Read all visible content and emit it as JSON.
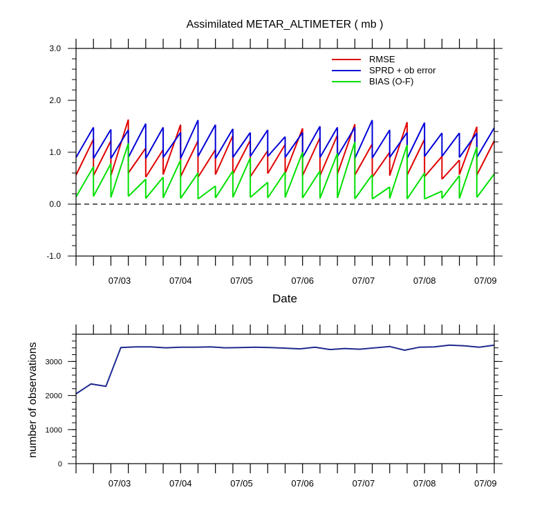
{
  "chart_data": [
    {
      "type": "line",
      "title": "Assimilated METAR_ALTIMETER ( mb )",
      "xlabel": "Date",
      "ylabel": "",
      "ylim": [
        -1.0,
        3.0
      ],
      "y_ticks": [
        "3.0",
        "2.0",
        "1.0",
        "0.0",
        "-1.0"
      ],
      "x_tick_labels": [
        "07/03",
        "07/04",
        "07/05",
        "07/06",
        "07/07",
        "07/08",
        "07/09"
      ],
      "legend_position": "top-right",
      "zero_line": "dashed",
      "colors": {
        "RMSE": "#e00000",
        "SPRD + ob error": "#0000d8",
        "BIAS (O-F)": "#00e000"
      },
      "cycles": [
        {
          "rmse": [
            0.56,
            1.25
          ],
          "sprd": [
            0.9,
            1.48
          ],
          "bias": [
            0.14,
            0.72
          ]
        },
        {
          "rmse": [
            0.55,
            1.22
          ],
          "sprd": [
            0.88,
            1.44
          ],
          "bias": [
            0.15,
            0.78
          ]
        },
        {
          "rmse": [
            0.55,
            1.63
          ],
          "sprd": [
            0.88,
            1.43
          ],
          "bias": [
            0.13,
            1.17
          ]
        },
        {
          "rmse": [
            0.6,
            1.08
          ],
          "sprd": [
            0.9,
            1.55
          ],
          "bias": [
            0.15,
            0.48
          ]
        },
        {
          "rmse": [
            0.52,
            1.05
          ],
          "sprd": [
            0.88,
            1.48
          ],
          "bias": [
            0.11,
            0.52
          ]
        },
        {
          "rmse": [
            0.57,
            1.53
          ],
          "sprd": [
            0.9,
            1.38
          ],
          "bias": [
            0.12,
            0.85
          ]
        },
        {
          "rmse": [
            0.53,
            1.22
          ],
          "sprd": [
            0.88,
            1.62
          ],
          "bias": [
            0.11,
            0.6
          ]
        },
        {
          "rmse": [
            0.52,
            1.05
          ],
          "sprd": [
            0.92,
            1.53
          ],
          "bias": [
            0.1,
            0.35
          ]
        },
        {
          "rmse": [
            0.57,
            1.32
          ],
          "sprd": [
            0.88,
            1.45
          ],
          "bias": [
            0.12,
            0.64
          ]
        },
        {
          "rmse": [
            0.58,
            1.23
          ],
          "sprd": [
            0.9,
            1.38
          ],
          "bias": [
            0.13,
            0.89
          ]
        },
        {
          "rmse": [
            0.53,
            1.03
          ],
          "sprd": [
            0.92,
            1.43
          ],
          "bias": [
            0.13,
            0.42
          ]
        },
        {
          "rmse": [
            0.59,
            1.15
          ],
          "sprd": [
            0.92,
            1.3
          ],
          "bias": [
            0.12,
            0.62
          ]
        },
        {
          "rmse": [
            0.59,
            1.46
          ],
          "sprd": [
            0.9,
            1.38
          ],
          "bias": [
            0.13,
            1.0
          ]
        },
        {
          "rmse": [
            0.55,
            1.28
          ],
          "sprd": [
            0.9,
            1.5
          ],
          "bias": [
            0.12,
            0.64
          ]
        },
        {
          "rmse": [
            0.55,
            1.33
          ],
          "sprd": [
            0.9,
            1.48
          ],
          "bias": [
            0.11,
            0.98
          ]
        },
        {
          "rmse": [
            0.58,
            1.54
          ],
          "sprd": [
            0.92,
            1.48
          ],
          "bias": [
            0.12,
            1.2
          ]
        },
        {
          "rmse": [
            0.56,
            1.16
          ],
          "sprd": [
            0.88,
            1.62
          ],
          "bias": [
            0.1,
            0.57
          ]
        },
        {
          "rmse": [
            0.52,
            1.0
          ],
          "sprd": [
            0.89,
            1.43
          ],
          "bias": [
            0.1,
            0.33
          ]
        },
        {
          "rmse": [
            0.55,
            1.58
          ],
          "sprd": [
            0.9,
            1.38
          ],
          "bias": [
            0.11,
            1.14
          ]
        },
        {
          "rmse": [
            0.56,
            1.25
          ],
          "sprd": [
            0.88,
            1.57
          ],
          "bias": [
            0.1,
            0.6
          ]
        },
        {
          "rmse": [
            0.53,
            0.92
          ],
          "sprd": [
            0.92,
            1.37
          ],
          "bias": [
            0.1,
            0.25
          ]
        },
        {
          "rmse": [
            0.48,
            0.85
          ],
          "sprd": [
            0.92,
            1.37
          ],
          "bias": [
            0.11,
            0.55
          ]
        },
        {
          "rmse": [
            0.57,
            1.49
          ],
          "sprd": [
            0.9,
            1.37
          ],
          "bias": [
            0.11,
            1.1
          ]
        },
        {
          "rmse": [
            0.56,
            1.22
          ],
          "sprd": [
            0.9,
            1.47
          ],
          "bias": [
            0.13,
            0.58
          ]
        }
      ]
    },
    {
      "type": "line",
      "title": "",
      "xlabel": "",
      "ylabel": "number of observations",
      "ylim": [
        0,
        3800
      ],
      "y_ticks": [
        "3000",
        "2000",
        "1000",
        "0"
      ],
      "x_tick_labels": [
        "07/03",
        "07/04",
        "07/05",
        "07/06",
        "07/07",
        "07/08",
        "07/09"
      ],
      "series": [
        {
          "values": [
            2050,
            2340,
            2270,
            3410,
            3430,
            3430,
            3400,
            3420,
            3420,
            3430,
            3400,
            3410,
            3420,
            3410,
            3390,
            3370,
            3420,
            3350,
            3380,
            3360,
            3400,
            3440,
            3330,
            3420,
            3430,
            3480,
            3460,
            3420,
            3480
          ]
        }
      ]
    }
  ]
}
